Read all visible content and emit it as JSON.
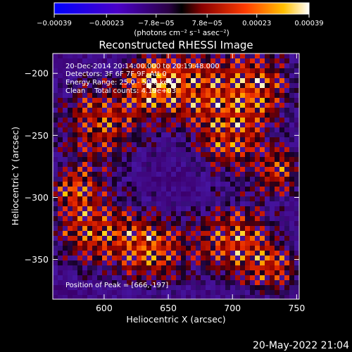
{
  "chart_data": {
    "type": "heatmap",
    "title": "Reconstructed RHESSI Image",
    "xlabel": "Heliocentric X (arcsec)",
    "ylabel": "Heliocentric Y (arcsec)",
    "xlim": [
      560,
      752
    ],
    "ylim": [
      -382,
      -184
    ],
    "x_ticks": [
      600,
      650,
      700,
      750
    ],
    "x_tick_labels": [
      "600",
      "650",
      "700",
      "750"
    ],
    "y_ticks": [
      -200,
      -250,
      -300,
      -350
    ],
    "y_tick_labels": [
      "−200",
      "−250",
      "−300",
      "−350"
    ],
    "colorbar": {
      "range": [
        -0.00039,
        0.00039
      ],
      "ticks": [
        -0.00039,
        -0.00023,
        -7.8e-05,
        7.8e-05,
        0.00023,
        0.00039
      ],
      "tick_labels": [
        "−0.00039",
        "−0.00023",
        "−7.8e−05",
        "7.8e−05",
        "0.00023",
        "0.00039"
      ],
      "units": "(photons cm⁻² s⁻¹ asec⁻²)"
    },
    "annotations": [
      "20-Dec-2014 20:14:00.000 to 20:19:48.000",
      "Detectors: 3F 6F 7F 9F, Att 0",
      "Energy Range: 25.0 - 50.0 keV",
      "Clean    Total counts: 4.19e+03"
    ],
    "peak_label": "Position of Peak = [666,-197]",
    "peak_position": [
      666,
      -197
    ],
    "grid": false
  },
  "footer": {
    "timestamp": "20-May-2022 21:04"
  }
}
